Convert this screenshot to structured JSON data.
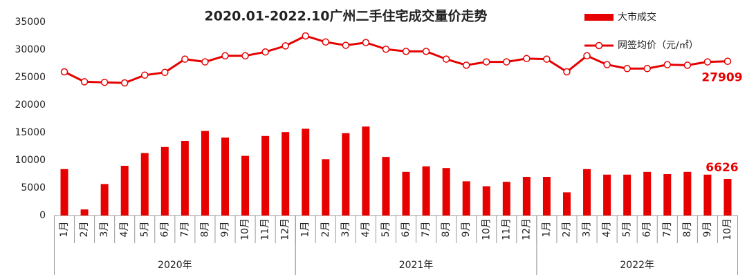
{
  "chart_data": {
    "type": "bar_line",
    "title": "2020.01-2022.10广州二手住宅成交量价走势",
    "groups": [
      {
        "label": "2020年",
        "categories": [
          "1月",
          "2月",
          "3月",
          "4月",
          "5月",
          "6月",
          "7月",
          "8月",
          "9月",
          "10月",
          "11月",
          "12月"
        ]
      },
      {
        "label": "2021年",
        "categories": [
          "1月",
          "2月",
          "3月",
          "4月",
          "5月",
          "6月",
          "7月",
          "8月",
          "9月",
          "10月",
          "11月",
          "12月"
        ]
      },
      {
        "label": "2022年",
        "categories": [
          "1月",
          "2月",
          "3月",
          "4月",
          "5月",
          "6月",
          "7月",
          "8月",
          "9月",
          "10月"
        ]
      }
    ],
    "series": [
      {
        "name": "大市成交",
        "type": "bar",
        "color": "#e60000",
        "values": [
          8400,
          1100,
          5700,
          9000,
          11300,
          12400,
          13500,
          15300,
          14100,
          10800,
          14400,
          15100,
          15700,
          10200,
          14900,
          16100,
          10600,
          7900,
          8900,
          8600,
          6200,
          5300,
          6100,
          7000,
          7000,
          4200,
          8400,
          7400,
          7400,
          7900,
          7500,
          7900,
          7400,
          6626
        ]
      },
      {
        "name": "网签均价（元/㎡）",
        "type": "line",
        "color": "#e60000",
        "values": [
          26000,
          24200,
          24100,
          24000,
          25400,
          25900,
          28300,
          27800,
          28900,
          28900,
          29600,
          30700,
          32500,
          31400,
          30800,
          31300,
          30100,
          29700,
          29700,
          28300,
          27200,
          27800,
          27800,
          28400,
          28300,
          26000,
          28900,
          27300,
          26600,
          26600,
          27300,
          27200,
          27800,
          27909
        ]
      }
    ],
    "ylim": [
      0,
      35000
    ],
    "yticks": [
      0,
      5000,
      10000,
      15000,
      20000,
      25000,
      30000,
      35000
    ],
    "grid": false,
    "legend": "top-right",
    "value_label_indices": [
      33
    ]
  }
}
